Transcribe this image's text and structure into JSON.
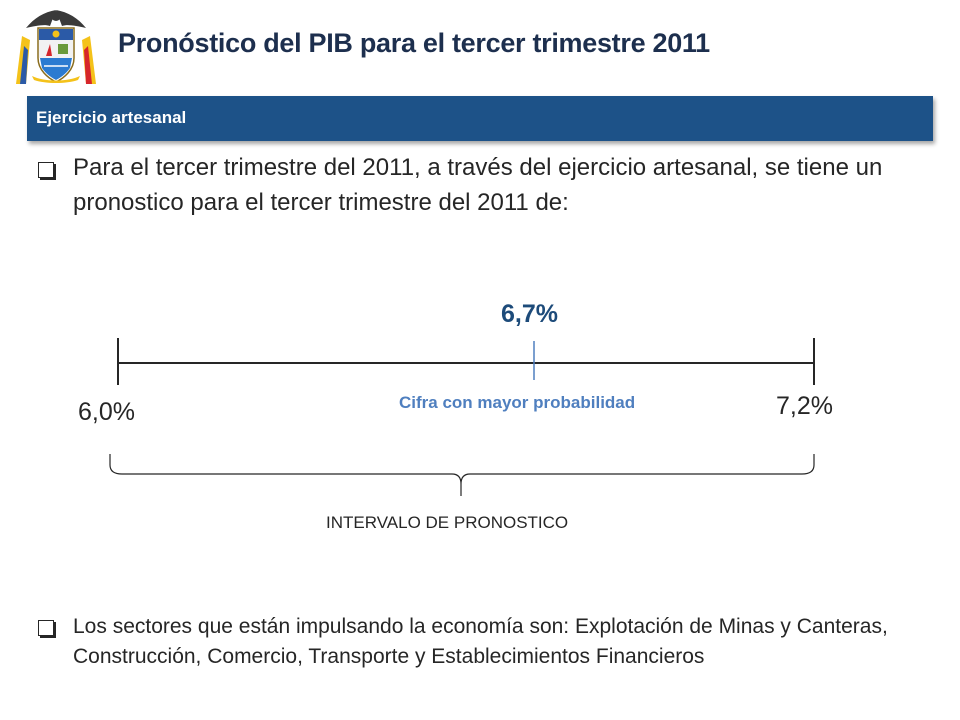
{
  "header": {
    "title": "Pronóstico del PIB para el tercer trimestre 2011",
    "logo_icon": "colombia-coat-of-arms-icon"
  },
  "section_band": {
    "label": "Ejercicio artesanal",
    "color": "#1d5288"
  },
  "bullets": [
    {
      "icon": "checkbox-bullet-icon",
      "text": "Para el tercer trimestre del 2011, a través del ejercicio artesanal, se tiene un pronostico para el tercer trimestre del 2011 de:"
    },
    {
      "icon": "checkbox-bullet-icon",
      "text": "Los sectores que están impulsando la economía son: Explotación de Minas y Canteras, Construcción, Comercio, Transporte y Establecimientos Financieros"
    }
  ],
  "forecast": {
    "low_label": "6,0%",
    "high_label": "7,2%",
    "center_label": "6,7%",
    "center_caption": "Cifra con mayor probabilidad",
    "interval_label": "INTERVALO DE PRONOSTICO",
    "center_color": "#1d4b7a",
    "caption_color": "#4f7fbf"
  }
}
